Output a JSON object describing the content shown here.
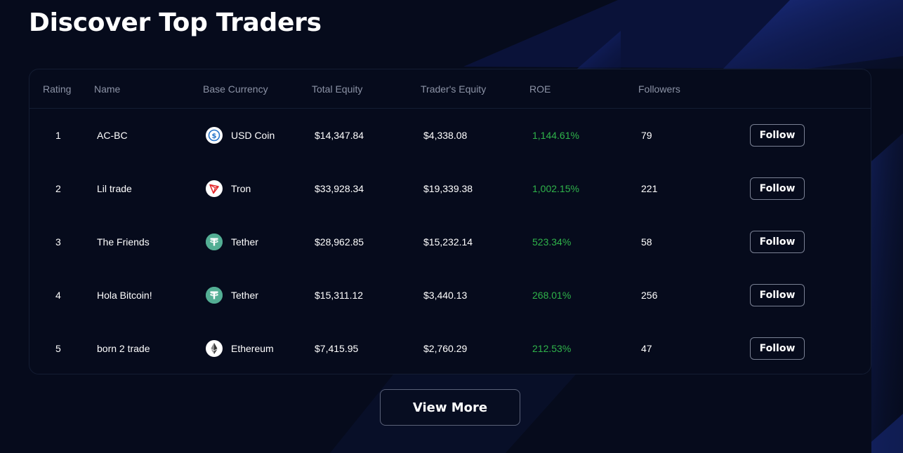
{
  "page": {
    "title": "Discover Top Traders"
  },
  "colors": {
    "background": "#060b1c",
    "accent_blue": "#1a2f8c",
    "roe_positive": "#2fb34a",
    "header_text": "#8c93a6"
  },
  "table": {
    "columns": [
      "Rating",
      "Name",
      "Base Currency",
      "Total Equity",
      "Trader's Equity",
      "ROE",
      "Followers"
    ],
    "rows": [
      {
        "rating": "1",
        "name": "AC-BC",
        "currency": "USD Coin",
        "currency_icon": "usd-coin-icon",
        "total_equity": "$14,347.84",
        "traders_equity": "$4,338.08",
        "roe": "1,144.61%",
        "followers": "79",
        "action": "Follow"
      },
      {
        "rating": "2",
        "name": "Lil trade",
        "currency": "Tron",
        "currency_icon": "tron-icon",
        "total_equity": "$33,928.34",
        "traders_equity": "$19,339.38",
        "roe": "1,002.15%",
        "followers": "221",
        "action": "Follow"
      },
      {
        "rating": "3",
        "name": "The Friends",
        "currency": "Tether",
        "currency_icon": "tether-icon",
        "total_equity": "$28,962.85",
        "traders_equity": "$15,232.14",
        "roe": "523.34%",
        "followers": "58",
        "action": "Follow"
      },
      {
        "rating": "4",
        "name": "Hola Bitcoin!",
        "currency": "Tether",
        "currency_icon": "tether-icon",
        "total_equity": "$15,311.12",
        "traders_equity": "$3,440.13",
        "roe": "268.01%",
        "followers": "256",
        "action": "Follow"
      },
      {
        "rating": "5",
        "name": "born 2 trade",
        "currency": "Ethereum",
        "currency_icon": "ethereum-icon",
        "total_equity": "$7,415.95",
        "traders_equity": "$2,760.29",
        "roe": "212.53%",
        "followers": "47",
        "action": "Follow"
      }
    ]
  },
  "view_more": {
    "label": "View More"
  }
}
